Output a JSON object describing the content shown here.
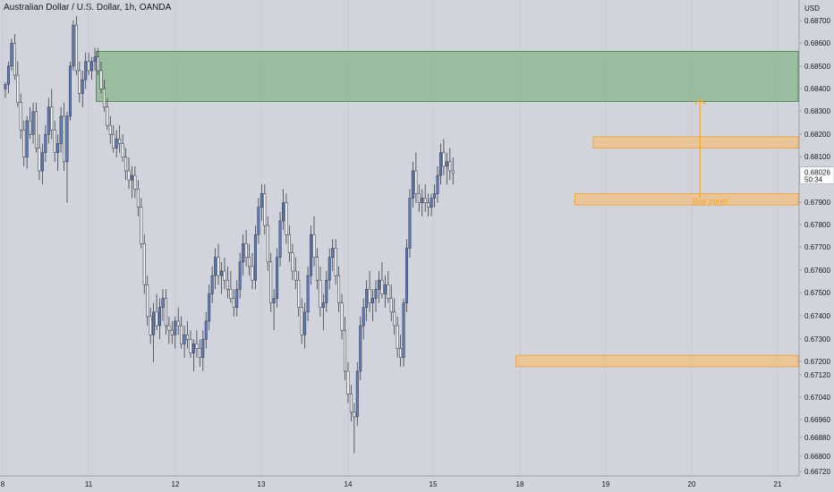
{
  "header": {
    "title": "Australian Dollar / U.S. Dollar, 1h, OANDA"
  },
  "chart_data": {
    "type": "candlestick",
    "price_axis": {
      "unit_label": "USD",
      "ticks": [
        "0.68700",
        "0.68600",
        "0.68500",
        "0.68400",
        "0.68300",
        "0.68200",
        "0.68100",
        "0.68000",
        "0.67900",
        "0.67800",
        "0.67700",
        "0.67600",
        "0.67500",
        "0.67400",
        "0.67300",
        "0.67200",
        "0.67120",
        "0.67040",
        "0.66960",
        "0.66880",
        "0.66800",
        "0.66720"
      ],
      "last_price": "0.68026",
      "countdown": "50:34"
    },
    "time_axis": {
      "ticks": [
        "8",
        "11",
        "12",
        "13",
        "14",
        "15",
        "18",
        "19",
        "20",
        "21"
      ]
    },
    "zones": [
      {
        "name": "supply",
        "color": "#8fb993",
        "top": 0.68565,
        "bottom": 0.68345,
        "from_candle": 30,
        "to": "end",
        "label": ""
      },
      {
        "name": "resistance",
        "color": "#f0c080",
        "top": 0.6819,
        "bottom": 0.6814,
        "from_candle": 191,
        "to": "end",
        "label": ""
      },
      {
        "name": "buy",
        "color": "#f0c080",
        "top": 0.6794,
        "bottom": 0.6789,
        "from_candle": 185,
        "to": "end",
        "label": "Buy zone!"
      },
      {
        "name": "support",
        "color": "#f0c080",
        "top": 0.6723,
        "bottom": 0.6718,
        "from_candle": 166,
        "to": "end",
        "label": ""
      }
    ],
    "arrow": {
      "color": "#f5a623",
      "from_price": 0.6792,
      "to_price": 0.68355,
      "at_candle": 225
    },
    "colors": {
      "up": "#5b7fc4",
      "down": "#ffffff",
      "outline": "#3a3f4b",
      "grid": "#c6cad3",
      "background": "#d1d4dc",
      "last_badge": "#ffffff"
    },
    "candles": [
      [
        0.684,
        0.6843,
        0.6836,
        0.6842
      ],
      [
        0.6842,
        0.6852,
        0.6838,
        0.685
      ],
      [
        0.685,
        0.6862,
        0.6848,
        0.686
      ],
      [
        0.686,
        0.6864,
        0.6844,
        0.6846
      ],
      [
        0.6846,
        0.6852,
        0.6832,
        0.6834
      ],
      [
        0.6834,
        0.6838,
        0.6818,
        0.6822
      ],
      [
        0.6822,
        0.6826,
        0.6806,
        0.681
      ],
      [
        0.681,
        0.6828,
        0.6805,
        0.6826
      ],
      [
        0.6826,
        0.6832,
        0.6818,
        0.682
      ],
      [
        0.682,
        0.6834,
        0.6816,
        0.683
      ],
      [
        0.683,
        0.6834,
        0.6812,
        0.6814
      ],
      [
        0.6814,
        0.682,
        0.68,
        0.6804
      ],
      [
        0.6804,
        0.6816,
        0.6798,
        0.6812
      ],
      [
        0.6812,
        0.6824,
        0.6808,
        0.682
      ],
      [
        0.682,
        0.6836,
        0.6816,
        0.6832
      ],
      [
        0.6832,
        0.684,
        0.6818,
        0.6822
      ],
      [
        0.6822,
        0.6826,
        0.6808,
        0.6812
      ],
      [
        0.6812,
        0.682,
        0.6804,
        0.6816
      ],
      [
        0.6816,
        0.6832,
        0.6812,
        0.6828
      ],
      [
        0.6828,
        0.6834,
        0.6804,
        0.6808
      ],
      [
        0.6808,
        0.683,
        0.679,
        0.6828
      ],
      [
        0.6828,
        0.6852,
        0.6826,
        0.685
      ],
      [
        0.685,
        0.687,
        0.6848,
        0.6868
      ],
      [
        0.6868,
        0.6872,
        0.6846,
        0.6848
      ],
      [
        0.6848,
        0.6852,
        0.6834,
        0.6838
      ],
      [
        0.6838,
        0.6848,
        0.6832,
        0.6844
      ],
      [
        0.6844,
        0.6856,
        0.684,
        0.6852
      ],
      [
        0.6852,
        0.6856,
        0.6846,
        0.6848
      ],
      [
        0.6848,
        0.6854,
        0.6844,
        0.6852
      ],
      [
        0.6852,
        0.6858,
        0.6848,
        0.6854
      ],
      [
        0.6854,
        0.6858,
        0.6846,
        0.6848
      ],
      [
        0.6848,
        0.6852,
        0.6838,
        0.684
      ],
      [
        0.684,
        0.6844,
        0.683,
        0.6832
      ],
      [
        0.6832,
        0.6836,
        0.6822,
        0.6824
      ],
      [
        0.6824,
        0.6828,
        0.6816,
        0.682
      ],
      [
        0.682,
        0.6824,
        0.6812,
        0.6814
      ],
      [
        0.6814,
        0.6822,
        0.681,
        0.6818
      ],
      [
        0.6818,
        0.6824,
        0.6812,
        0.6816
      ],
      [
        0.6816,
        0.682,
        0.6808,
        0.681
      ],
      [
        0.681,
        0.6814,
        0.68,
        0.6804
      ],
      [
        0.6804,
        0.681,
        0.6796,
        0.68
      ],
      [
        0.68,
        0.6806,
        0.6792,
        0.6802
      ],
      [
        0.6802,
        0.6806,
        0.6792,
        0.6796
      ],
      [
        0.6796,
        0.68,
        0.6784,
        0.6788
      ],
      [
        0.6788,
        0.6792,
        0.677,
        0.6772
      ],
      [
        0.6772,
        0.6776,
        0.675,
        0.6754
      ],
      [
        0.6754,
        0.6758,
        0.6736,
        0.674
      ],
      [
        0.674,
        0.6744,
        0.6728,
        0.6732
      ],
      [
        0.6732,
        0.6746,
        0.672,
        0.6742
      ],
      [
        0.6742,
        0.675,
        0.6734,
        0.6736
      ],
      [
        0.6736,
        0.6748,
        0.673,
        0.6744
      ],
      [
        0.6744,
        0.6752,
        0.6738,
        0.6748
      ],
      [
        0.6748,
        0.6752,
        0.6732,
        0.6736
      ],
      [
        0.6736,
        0.674,
        0.6728,
        0.6734
      ],
      [
        0.6734,
        0.6738,
        0.6728,
        0.6732
      ],
      [
        0.6732,
        0.674,
        0.6726,
        0.6738
      ],
      [
        0.6738,
        0.6744,
        0.6732,
        0.6736
      ],
      [
        0.6736,
        0.674,
        0.6726,
        0.6728
      ],
      [
        0.6728,
        0.6736,
        0.6722,
        0.6732
      ],
      [
        0.6732,
        0.6738,
        0.6726,
        0.673
      ],
      [
        0.673,
        0.6734,
        0.6722,
        0.6724
      ],
      [
        0.6724,
        0.673,
        0.6716,
        0.6728
      ],
      [
        0.6728,
        0.6734,
        0.6722,
        0.6726
      ],
      [
        0.6726,
        0.673,
        0.6718,
        0.6722
      ],
      [
        0.6722,
        0.6734,
        0.6716,
        0.673
      ],
      [
        0.673,
        0.6742,
        0.6726,
        0.6738
      ],
      [
        0.6738,
        0.6754,
        0.6734,
        0.675
      ],
      [
        0.675,
        0.6762,
        0.6746,
        0.6758
      ],
      [
        0.6758,
        0.677,
        0.6752,
        0.6766
      ],
      [
        0.6766,
        0.6772,
        0.6754,
        0.6758
      ],
      [
        0.6758,
        0.6764,
        0.675,
        0.676
      ],
      [
        0.676,
        0.6766,
        0.6752,
        0.6756
      ],
      [
        0.6756,
        0.6762,
        0.6748,
        0.6752
      ],
      [
        0.6752,
        0.676,
        0.6746,
        0.6748
      ],
      [
        0.6748,
        0.6752,
        0.674,
        0.6744
      ],
      [
        0.6744,
        0.6756,
        0.674,
        0.6752
      ],
      [
        0.6752,
        0.6768,
        0.6748,
        0.6764
      ],
      [
        0.6764,
        0.6776,
        0.6758,
        0.6772
      ],
      [
        0.6772,
        0.6778,
        0.6762,
        0.6766
      ],
      [
        0.6766,
        0.6772,
        0.6758,
        0.6762
      ],
      [
        0.6762,
        0.6768,
        0.6752,
        0.6756
      ],
      [
        0.6756,
        0.678,
        0.6752,
        0.6776
      ],
      [
        0.6776,
        0.6792,
        0.6772,
        0.6788
      ],
      [
        0.6788,
        0.6798,
        0.6782,
        0.6794
      ],
      [
        0.6794,
        0.6798,
        0.6776,
        0.678
      ],
      [
        0.678,
        0.6784,
        0.676,
        0.6764
      ],
      [
        0.6764,
        0.6768,
        0.6742,
        0.6746
      ],
      [
        0.6746,
        0.6752,
        0.6734,
        0.6748
      ],
      [
        0.6748,
        0.677,
        0.6744,
        0.6766
      ],
      [
        0.6766,
        0.6786,
        0.6762,
        0.6782
      ],
      [
        0.6782,
        0.6796,
        0.6778,
        0.679
      ],
      [
        0.679,
        0.6794,
        0.6772,
        0.6776
      ],
      [
        0.6776,
        0.678,
        0.6764,
        0.6768
      ],
      [
        0.6768,
        0.6772,
        0.6756,
        0.676
      ],
      [
        0.676,
        0.6766,
        0.6752,
        0.6756
      ],
      [
        0.6756,
        0.676,
        0.674,
        0.6744
      ],
      [
        0.6744,
        0.6748,
        0.6728,
        0.6732
      ],
      [
        0.6732,
        0.6746,
        0.6726,
        0.6742
      ],
      [
        0.6742,
        0.6762,
        0.6738,
        0.6758
      ],
      [
        0.6758,
        0.678,
        0.6754,
        0.6776
      ],
      [
        0.6776,
        0.6784,
        0.6762,
        0.6766
      ],
      [
        0.6766,
        0.677,
        0.6752,
        0.6756
      ],
      [
        0.6756,
        0.6762,
        0.674,
        0.6744
      ],
      [
        0.6744,
        0.675,
        0.6734,
        0.6746
      ],
      [
        0.6746,
        0.676,
        0.6742,
        0.6756
      ],
      [
        0.6756,
        0.677,
        0.6752,
        0.6766
      ],
      [
        0.6766,
        0.6774,
        0.676,
        0.677
      ],
      [
        0.677,
        0.6774,
        0.6754,
        0.6758
      ],
      [
        0.6758,
        0.6762,
        0.6742,
        0.6746
      ],
      [
        0.6746,
        0.675,
        0.673,
        0.6734
      ],
      [
        0.6734,
        0.674,
        0.6712,
        0.6716
      ],
      [
        0.6716,
        0.672,
        0.6702,
        0.6706
      ],
      [
        0.6706,
        0.671,
        0.6694,
        0.6698
      ],
      [
        0.6698,
        0.6702,
        0.668,
        0.6696
      ],
      [
        0.6696,
        0.672,
        0.6692,
        0.6716
      ],
      [
        0.6716,
        0.674,
        0.6712,
        0.6736
      ],
      [
        0.6736,
        0.6748,
        0.673,
        0.6744
      ],
      [
        0.6744,
        0.6756,
        0.6738,
        0.6752
      ],
      [
        0.6752,
        0.676,
        0.6742,
        0.6746
      ],
      [
        0.6746,
        0.6752,
        0.6738,
        0.6748
      ],
      [
        0.6748,
        0.6756,
        0.6742,
        0.6752
      ],
      [
        0.6752,
        0.676,
        0.6746,
        0.6756
      ],
      [
        0.6756,
        0.6764,
        0.6748,
        0.675
      ],
      [
        0.675,
        0.6758,
        0.6744,
        0.6754
      ],
      [
        0.6754,
        0.676,
        0.6746,
        0.6748
      ],
      [
        0.6748,
        0.6754,
        0.6738,
        0.6742
      ],
      [
        0.6742,
        0.6748,
        0.6732,
        0.6736
      ],
      [
        0.6736,
        0.674,
        0.6722,
        0.6726
      ],
      [
        0.6726,
        0.6732,
        0.6718,
        0.6722
      ],
      [
        0.6722,
        0.6748,
        0.6718,
        0.6746
      ],
      [
        0.6746,
        0.6774,
        0.6742,
        0.677
      ],
      [
        0.677,
        0.6796,
        0.6766,
        0.6792
      ],
      [
        0.6792,
        0.6808,
        0.6788,
        0.6804
      ],
      [
        0.6804,
        0.6812,
        0.679,
        0.6794
      ],
      [
        0.6794,
        0.6798,
        0.6786,
        0.679
      ],
      [
        0.679,
        0.6796,
        0.6784,
        0.6792
      ],
      [
        0.6792,
        0.6798,
        0.6786,
        0.679
      ],
      [
        0.679,
        0.6794,
        0.6784,
        0.6788
      ],
      [
        0.6788,
        0.6794,
        0.6784,
        0.6792
      ],
      [
        0.6792,
        0.6798,
        0.6788,
        0.6794
      ],
      [
        0.6794,
        0.6806,
        0.679,
        0.6802
      ],
      [
        0.6802,
        0.6816,
        0.6798,
        0.6812
      ],
      [
        0.6812,
        0.6818,
        0.6802,
        0.6806
      ],
      [
        0.6806,
        0.6812,
        0.6798,
        0.6808
      ],
      [
        0.6808,
        0.6814,
        0.68,
        0.6804
      ],
      [
        0.6804,
        0.681,
        0.6798,
        0.6803
      ]
    ]
  }
}
